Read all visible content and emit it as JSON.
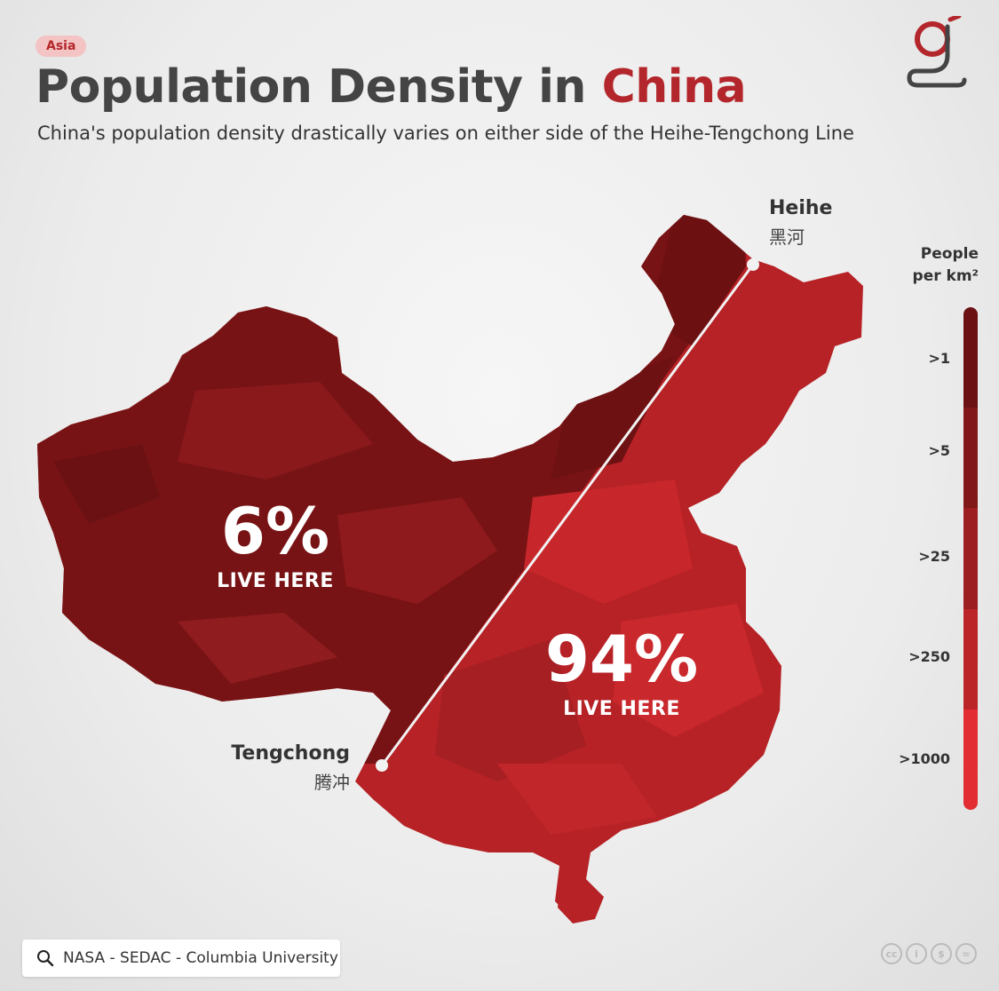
{
  "header": {
    "tag": "Asia",
    "title_main": "Population Density in",
    "title_accent": "China",
    "subtitle": "China's population density drastically varies on either side of the Heihe-Tengchong Line"
  },
  "map": {
    "west": {
      "percent": "6%",
      "label": "LIVE HERE"
    },
    "east": {
      "percent": "94%",
      "label": "LIVE HERE"
    },
    "heihe": {
      "en": "Heihe",
      "zh": "黑河"
    },
    "tengchong": {
      "en": "Tengchong",
      "zh": "腾冲"
    }
  },
  "legend": {
    "title_line1": "People",
    "title_line2": "per km²",
    "items": [
      {
        "label": ">1",
        "color": "#6b1113"
      },
      {
        "label": ">5",
        "color": "#821719"
      },
      {
        "label": ">25",
        "color": "#9c1e21"
      },
      {
        "label": ">250",
        "color": "#bb2528"
      },
      {
        "label": ">1000",
        "color": "#e22d33"
      }
    ]
  },
  "colors": {
    "accent": "#b3262b",
    "west_fill": "#781315",
    "east_fill": "#b62226",
    "line": "#f2f2f2"
  },
  "source": {
    "text": "NASA - SEDAC - Columbia University"
  },
  "license_icons": [
    "cc-icon",
    "by-icon",
    "nc-icon",
    "nd-icon"
  ]
}
